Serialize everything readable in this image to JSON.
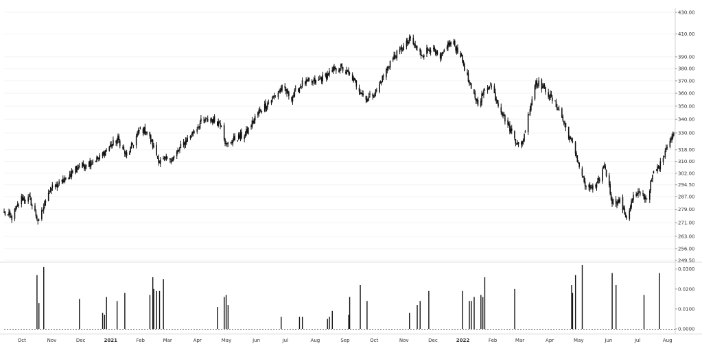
{
  "chart_data": [
    {
      "type": "candlestick",
      "title": "",
      "xlabel": "",
      "ylabel": "",
      "y_scale": "log",
      "ylim": [
        249.5,
        430
      ],
      "y_ticks": [
        "430.00",
        "410.00",
        "390.00",
        "380.00",
        "370.00",
        "360.00",
        "350.00",
        "340.00",
        "330.00",
        "318.00",
        "310.00",
        "302.00",
        "294.50",
        "287.00",
        "279.00",
        "271.00",
        "263.00",
        "256.00",
        "249.50"
      ],
      "x_ticks": [
        "Oct",
        "Nov",
        "Dec",
        "2021",
        "Feb",
        "Mar",
        "Apr",
        "May",
        "Jun",
        "Jul",
        "Aug",
        "Sep",
        "Oct",
        "Nov",
        "Dec",
        "2022",
        "Feb",
        "Mar",
        "Apr",
        "May",
        "Jun",
        "Jul",
        "Aug"
      ],
      "x_ticks_bold": [
        "2021",
        "2022"
      ],
      "x_range": [
        "2020-09-24",
        "2022-08-19"
      ],
      "candle_color": "#111111",
      "series_close": [
        [
          "2020-09-24",
          277
        ],
        [
          "2020-10-02",
          274
        ],
        [
          "2020-10-12",
          286
        ],
        [
          "2020-10-21",
          285
        ],
        [
          "2020-10-30",
          271
        ],
        [
          "2020-11-09",
          291
        ],
        [
          "2020-11-18",
          294
        ],
        [
          "2020-11-27",
          298
        ],
        [
          "2020-12-08",
          306
        ],
        [
          "2020-12-18",
          308
        ],
        [
          "2020-12-31",
          312
        ],
        [
          "2021-01-08",
          318
        ],
        [
          "2021-01-20",
          326
        ],
        [
          "2021-01-29",
          313
        ],
        [
          "2021-02-12",
          333
        ],
        [
          "2021-02-19",
          331
        ],
        [
          "2021-03-04",
          310
        ],
        [
          "2021-03-12",
          311
        ],
        [
          "2021-03-19",
          313
        ],
        [
          "2021-03-26",
          320
        ],
        [
          "2021-04-05",
          328
        ],
        [
          "2021-04-16",
          338
        ],
        [
          "2021-04-26",
          340
        ],
        [
          "2021-05-07",
          337
        ],
        [
          "2021-05-12",
          321
        ],
        [
          "2021-05-21",
          326
        ],
        [
          "2021-06-01",
          329
        ],
        [
          "2021-06-14",
          345
        ],
        [
          "2021-06-25",
          353
        ],
        [
          "2021-07-09",
          364
        ],
        [
          "2021-07-19",
          357
        ],
        [
          "2021-07-30",
          368
        ],
        [
          "2021-08-13",
          369
        ],
        [
          "2021-08-27",
          376
        ],
        [
          "2021-09-07",
          382
        ],
        [
          "2021-09-20",
          372
        ],
        [
          "2021-10-04",
          355
        ],
        [
          "2021-10-15",
          362
        ],
        [
          "2021-10-29",
          386
        ],
        [
          "2021-11-08",
          395
        ],
        [
          "2021-11-19",
          405
        ],
        [
          "2021-11-30",
          392
        ],
        [
          "2021-12-10",
          398
        ],
        [
          "2021-12-20",
          387
        ],
        [
          "2021-12-27",
          401
        ],
        [
          "2022-01-03",
          401
        ],
        [
          "2022-01-10",
          392
        ],
        [
          "2022-01-21",
          362
        ],
        [
          "2022-01-28",
          353
        ],
        [
          "2022-02-09",
          368
        ],
        [
          "2022-02-24",
          342
        ],
        [
          "2022-03-08",
          325
        ],
        [
          "2022-03-14",
          320
        ],
        [
          "2022-03-29",
          370
        ],
        [
          "2022-04-08",
          363
        ],
        [
          "2022-04-22",
          347
        ],
        [
          "2022-05-09",
          316
        ],
        [
          "2022-05-20",
          292
        ],
        [
          "2022-05-31",
          293
        ],
        [
          "2022-06-08",
          308
        ],
        [
          "2022-06-16",
          284
        ],
        [
          "2022-06-24",
          284
        ],
        [
          "2022-07-01",
          274
        ],
        [
          "2022-07-08",
          287
        ],
        [
          "2022-07-15",
          289
        ],
        [
          "2022-07-22",
          286
        ],
        [
          "2022-07-29",
          302
        ],
        [
          "2022-08-05",
          308
        ],
        [
          "2022-08-12",
          322
        ],
        [
          "2022-08-19",
          329
        ]
      ]
    },
    {
      "type": "bar",
      "title": "",
      "xlabel": "",
      "ylabel": "",
      "ylim": [
        0,
        0.033
      ],
      "y_ticks": [
        "0.0300",
        "0.0200",
        "0.0100",
        "0.0000"
      ],
      "zero_line": "dotted",
      "values": [
        [
          "2020-10-28",
          0.027
        ],
        [
          "2020-10-30",
          0.013
        ],
        [
          "2020-11-04",
          0.031
        ],
        [
          "2020-12-11",
          0.015
        ],
        [
          "2021-01-04",
          0.008
        ],
        [
          "2021-01-06",
          0.007
        ],
        [
          "2021-01-08",
          0.016
        ],
        [
          "2021-01-19",
          0.014
        ],
        [
          "2021-01-27",
          0.018
        ],
        [
          "2021-02-22",
          0.017
        ],
        [
          "2021-02-25",
          0.026
        ],
        [
          "2021-02-26",
          0.02
        ],
        [
          "2021-03-01",
          0.019
        ],
        [
          "2021-03-04",
          0.019
        ],
        [
          "2021-03-08",
          0.025
        ],
        [
          "2021-05-03",
          0.011
        ],
        [
          "2021-05-10",
          0.016
        ],
        [
          "2021-05-12",
          0.017
        ],
        [
          "2021-05-14",
          0.012
        ],
        [
          "2021-07-08",
          0.006
        ],
        [
          "2021-07-27",
          0.006
        ],
        [
          "2021-07-30",
          0.006
        ],
        [
          "2021-08-25",
          0.005
        ],
        [
          "2021-08-27",
          0.006
        ],
        [
          "2021-08-30",
          0.009
        ],
        [
          "2021-09-16",
          0.007
        ],
        [
          "2021-09-17",
          0.016
        ],
        [
          "2021-09-28",
          0.022
        ],
        [
          "2021-10-05",
          0.014
        ],
        [
          "2021-11-18",
          0.008
        ],
        [
          "2021-11-26",
          0.012
        ],
        [
          "2021-11-29",
          0.014
        ],
        [
          "2021-12-08",
          0.019
        ],
        [
          "2022-01-12",
          0.019
        ],
        [
          "2022-01-19",
          0.014
        ],
        [
          "2022-01-21",
          0.014
        ],
        [
          "2022-01-24",
          0.016
        ],
        [
          "2022-01-31",
          0.017
        ],
        [
          "2022-02-02",
          0.016
        ],
        [
          "2022-02-04",
          0.026
        ],
        [
          "2022-03-07",
          0.02
        ],
        [
          "2022-05-05",
          0.022
        ],
        [
          "2022-05-06",
          0.018
        ],
        [
          "2022-05-09",
          0.027
        ],
        [
          "2022-05-16",
          0.032
        ],
        [
          "2022-06-16",
          0.028
        ],
        [
          "2022-06-20",
          0.022
        ],
        [
          "2022-07-19",
          0.017
        ],
        [
          "2022-08-04",
          0.028
        ]
      ]
    }
  ]
}
